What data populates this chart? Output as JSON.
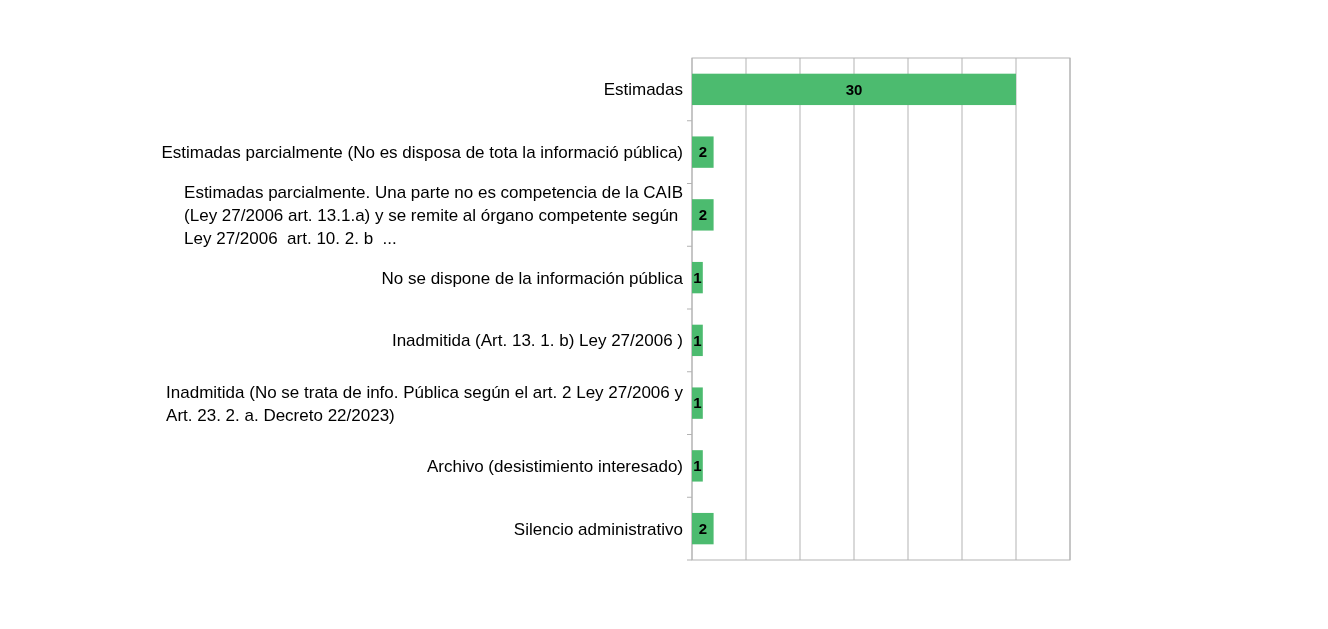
{
  "chart_data": {
    "type": "bar",
    "orientation": "horizontal",
    "categories": [
      "Estimadas",
      "Estimadas parcialmente (No es disposa de tota la informació pública)",
      "Estimadas parcialmente. Una parte no es competencia de la CAIB (Ley 27/2006 art. 13.1.a) y se remite al órgano competente según Ley 27/2006  art. 10. 2. b  ...",
      "No se dispone de la información pública",
      "Inadmitida (Art. 13. 1. b) Ley 27/2006 )",
      "Inadmitida (No se trata de info. Pública según el art. 2 Ley 27/2006 y Art. 23. 2. a. Decreto 22/2023)",
      "Archivo (desistimiento interesado)",
      "Silencio administrativo"
    ],
    "values": [
      30,
      2,
      2,
      1,
      1,
      1,
      1,
      2
    ],
    "color": "#4cbb6f",
    "xlim": [
      0,
      35
    ],
    "xticks": [
      {
        "value": 0,
        "label": null
      },
      {
        "value": 5,
        "label": null
      },
      {
        "value": 10,
        "label": null
      },
      {
        "value": 15,
        "label": null
      },
      {
        "value": 20,
        "label": null
      },
      {
        "value": 25,
        "label": null
      },
      {
        "value": 30,
        "label": null
      },
      {
        "value": 35,
        "label": null
      }
    ],
    "grid": "x",
    "tick_labels": "y",
    "data_labels": true
  }
}
